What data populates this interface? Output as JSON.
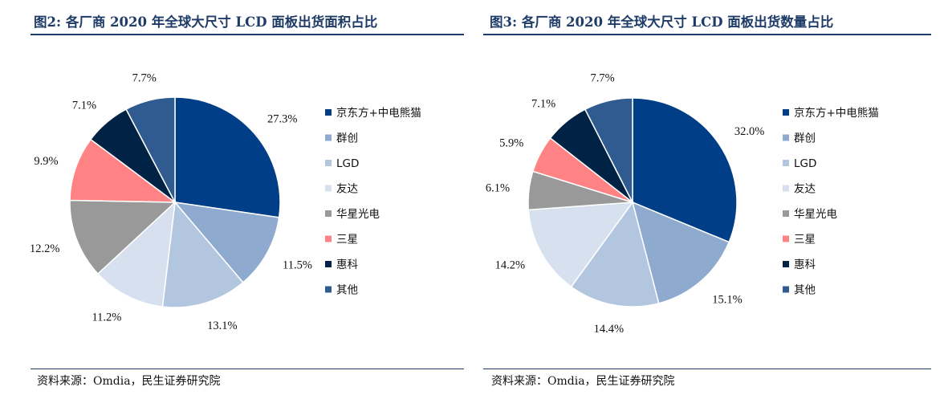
{
  "figures": [
    {
      "title": "图2: 各厂商 2020 年全球大尺寸 LCD 面板出货面积占比",
      "source": "资料来源：Omdia，民生证券研究院"
    },
    {
      "title": "图3: 各厂商 2020 年全球大尺寸 LCD 面板出货数量占比",
      "source": "资料来源：Omdia，民生证券研究院"
    }
  ],
  "chart_data": [
    {
      "type": "pie",
      "title": "图2: 各厂商 2020 年全球大尺寸 LCD 面板出货面积占比",
      "categories": [
        "京东方+中电熊猫",
        "群创",
        "LGD",
        "友达",
        "华星光电",
        "三星",
        "惠科",
        "其他"
      ],
      "values": [
        27.3,
        11.5,
        13.1,
        11.2,
        12.2,
        9.9,
        7.1,
        7.7
      ],
      "labels": [
        "27.3%",
        "11.5%",
        "13.1%",
        "11.2%",
        "12.2%",
        "9.9%",
        "7.1%",
        "7.7%"
      ],
      "colors": [
        "#003f87",
        "#8eaacf",
        "#b2c6e0",
        "#d6e0ee",
        "#999999",
        "#ff8384",
        "#002345",
        "#2f5b90"
      ],
      "legend_position": "right"
    },
    {
      "type": "pie",
      "title": "图3: 各厂商 2020 年全球大尺寸 LCD 面板出货数量占比",
      "categories": [
        "京东方+中电熊猫",
        "群创",
        "LGD",
        "友达",
        "华星光电",
        "三星",
        "惠科",
        "其他"
      ],
      "values": [
        32.0,
        15.1,
        14.4,
        14.2,
        6.1,
        5.9,
        7.1,
        7.7
      ],
      "labels": [
        "32.0%",
        "15.1%",
        "14.4%",
        "14.2%",
        "6.1%",
        "5.9%",
        "7.1%",
        "7.7%"
      ],
      "colors": [
        "#003f87",
        "#8eaacf",
        "#b2c6e0",
        "#d6e0ee",
        "#999999",
        "#ff8384",
        "#002345",
        "#2f5b90"
      ],
      "legend_position": "right"
    }
  ]
}
